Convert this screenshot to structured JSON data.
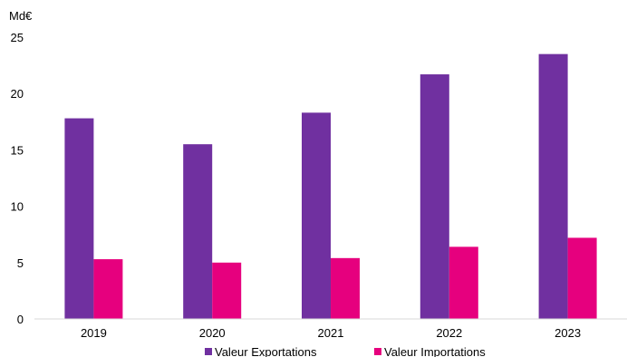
{
  "chart_data": {
    "type": "bar",
    "unit_label": "Md€",
    "categories": [
      "2019",
      "2020",
      "2021",
      "2022",
      "2023"
    ],
    "series": [
      {
        "name": "Valeur Exportations",
        "color": "#7030A0",
        "values": [
          17.8,
          15.5,
          18.3,
          21.7,
          23.5
        ]
      },
      {
        "name": "Valeur Importations",
        "color": "#E6007E",
        "values": [
          5.3,
          5.0,
          5.4,
          6.4,
          7.2
        ]
      }
    ],
    "ylim": [
      0,
      25
    ],
    "yticks": [
      0,
      5,
      10,
      15,
      20,
      25
    ],
    "grid": false,
    "legend_position": "bottom"
  }
}
